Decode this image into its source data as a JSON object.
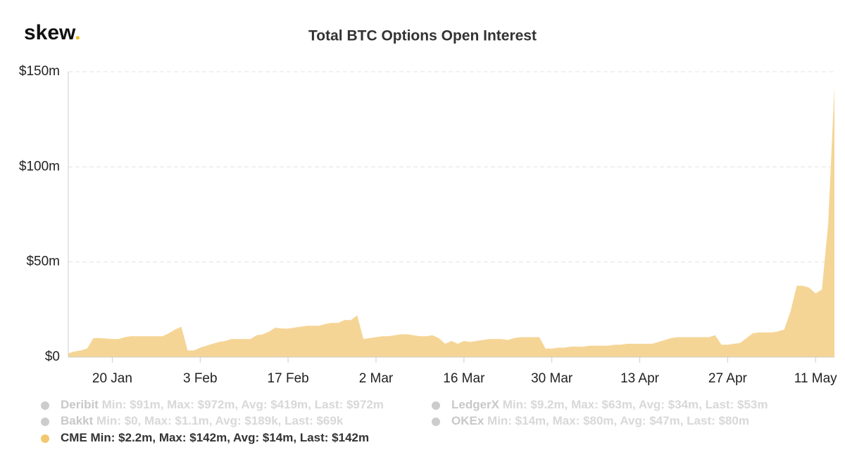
{
  "chart_data": {
    "type": "area",
    "logo": "skew",
    "logo_dot": ".",
    "title": "Total BTC Options Open Interest",
    "categories": [
      "13 Jan",
      "14 Jan",
      "15 Jan",
      "16 Jan",
      "17 Jan",
      "18 Jan",
      "19 Jan",
      "20 Jan",
      "21 Jan",
      "22 Jan",
      "23 Jan",
      "24 Jan",
      "25 Jan",
      "26 Jan",
      "27 Jan",
      "28 Jan",
      "29 Jan",
      "30 Jan",
      "31 Jan",
      "1 Feb",
      "2 Feb",
      "3 Feb",
      "4 Feb",
      "5 Feb",
      "6 Feb",
      "7 Feb",
      "8 Feb",
      "9 Feb",
      "10 Feb",
      "11 Feb",
      "12 Feb",
      "13 Feb",
      "14 Feb",
      "15 Feb",
      "16 Feb",
      "17 Feb",
      "18 Feb",
      "19 Feb",
      "20 Feb",
      "21 Feb",
      "22 Feb",
      "23 Feb",
      "24 Feb",
      "25 Feb",
      "26 Feb",
      "27 Feb",
      "28 Feb",
      "29 Feb",
      "1 Mar",
      "2 Mar",
      "3 Mar",
      "4 Mar",
      "5 Mar",
      "6 Mar",
      "7 Mar",
      "8 Mar",
      "9 Mar",
      "10 Mar",
      "11 Mar",
      "12 Mar",
      "13 Mar",
      "14 Mar",
      "15 Mar",
      "16 Mar",
      "17 Mar",
      "18 Mar",
      "19 Mar",
      "20 Mar",
      "21 Mar",
      "22 Mar",
      "23 Mar",
      "24 Mar",
      "25 Mar",
      "26 Mar",
      "27 Mar",
      "28 Mar",
      "29 Mar",
      "30 Mar",
      "31 Mar",
      "1 Apr",
      "2 Apr",
      "3 Apr",
      "4 Apr",
      "5 Apr",
      "6 Apr",
      "7 Apr",
      "8 Apr",
      "9 Apr",
      "10 Apr",
      "11 Apr",
      "12 Apr",
      "13 Apr",
      "14 Apr",
      "15 Apr",
      "16 Apr",
      "17 Apr",
      "18 Apr",
      "19 Apr",
      "20 Apr",
      "21 Apr",
      "22 Apr",
      "23 Apr",
      "24 Apr",
      "25 Apr",
      "26 Apr",
      "27 Apr",
      "28 Apr",
      "29 Apr",
      "30 Apr",
      "1 May",
      "2 May",
      "3 May",
      "4 May",
      "5 May",
      "6 May",
      "7 May",
      "8 May",
      "9 May",
      "10 May",
      "11 May",
      "12 May",
      "13 May",
      "14 May"
    ],
    "series": [
      {
        "name": "CME",
        "color": "#f5d596",
        "legend_color": "#f2c86e",
        "visible": true,
        "stats": "Min: $2.2m, Max: $142m, Avg: $14m, Last: $142m",
        "values": [
          2,
          3,
          3.5,
          4.5,
          10,
          10,
          9.8,
          9.5,
          9.5,
          10.5,
          11,
          11,
          11,
          11,
          11,
          11,
          12.5,
          14.5,
          16,
          3.5,
          3.5,
          5,
          6,
          7,
          8,
          8.5,
          9.5,
          9.5,
          9.5,
          9.5,
          11.5,
          12,
          13.5,
          15.5,
          15,
          15,
          15.5,
          16,
          16.5,
          16.5,
          16.5,
          17.5,
          18,
          18,
          19.5,
          19.5,
          22,
          9.5,
          10,
          10.5,
          11,
          11,
          11.5,
          12,
          12,
          11.5,
          11,
          11,
          11.5,
          10,
          7,
          8.5,
          7,
          8.5,
          8,
          8.5,
          9,
          9.5,
          9.5,
          9.5,
          9,
          10,
          10.5,
          10.5,
          10.5,
          10.5,
          4.5,
          4.5,
          5,
          5,
          5.5,
          5.5,
          5.5,
          6,
          6,
          6,
          6,
          6.5,
          6.5,
          7,
          7,
          7,
          7,
          7,
          8,
          9,
          10,
          10.5,
          10.5,
          10.5,
          10.5,
          10.5,
          10.5,
          11.5,
          6.5,
          6.5,
          7,
          7.5,
          10,
          12.5,
          13,
          13,
          13,
          13.5,
          14.5,
          24,
          37.5,
          37.5,
          36.5,
          33.5,
          35.5,
          70,
          142
        ]
      }
    ],
    "hidden_series": [
      {
        "name": "Deribit",
        "stats": "Min: $91m, Max: $972m, Avg: $419m, Last: $972m"
      },
      {
        "name": "LedgerX",
        "stats": "Min: $9.2m, Max: $63m, Avg: $34m, Last: $53m"
      },
      {
        "name": "Bakkt",
        "stats": "Min: $0, Max: $1.1m, Avg: $189k, Last: $69k"
      },
      {
        "name": "OKEx",
        "stats": "Min: $14m, Max: $80m, Avg: $47m, Last: $80m"
      }
    ],
    "xticks": [
      "20 Jan",
      "3 Feb",
      "17 Feb",
      "2 Mar",
      "16 Mar",
      "30 Mar",
      "13 Apr",
      "27 Apr",
      "11 May"
    ],
    "ylim": [
      0,
      150
    ],
    "yticks": [
      {
        "value": 0,
        "label": "$0"
      },
      {
        "value": 50,
        "label": "$50m"
      },
      {
        "value": 100,
        "label": "$100m"
      },
      {
        "value": 150,
        "label": "$150m"
      }
    ],
    "grid": true
  }
}
